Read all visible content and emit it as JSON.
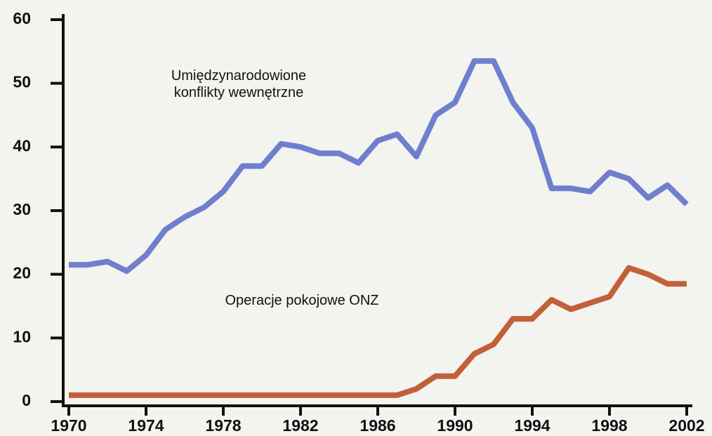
{
  "chart_data": {
    "type": "line",
    "x": [
      1970,
      1971,
      1972,
      1973,
      1974,
      1975,
      1976,
      1977,
      1978,
      1979,
      1980,
      1981,
      1982,
      1983,
      1984,
      1985,
      1986,
      1987,
      1988,
      1989,
      1990,
      1991,
      1992,
      1993,
      1994,
      1995,
      1996,
      1997,
      1998,
      1999,
      2000,
      2001,
      2002
    ],
    "series": [
      {
        "name": "Umiędzynarodowione konflikty wewnętrzne",
        "color": "#6f7fce",
        "values": [
          21.5,
          21.5,
          22,
          20.5,
          23,
          27,
          29,
          30.5,
          33,
          37,
          37,
          40.5,
          40,
          39,
          39,
          37.5,
          41,
          42,
          38.5,
          45,
          47,
          53.5,
          53.5,
          47,
          43,
          33.5,
          33.5,
          33,
          36,
          35,
          32,
          34,
          31
        ]
      },
      {
        "name": "Operacje pokojowe ONZ",
        "color": "#c2603a",
        "values": [
          1,
          1,
          1,
          1,
          1,
          1,
          1,
          1,
          1,
          1,
          1,
          1,
          1,
          1,
          1,
          1,
          1,
          1,
          2,
          4,
          4,
          7.5,
          9,
          13,
          13,
          16,
          14.5,
          15.5,
          16.5,
          21,
          20,
          18.5,
          18.5
        ]
      }
    ],
    "xlim": [
      1970,
      2002
    ],
    "xticks": [
      1970,
      1974,
      1978,
      1982,
      1986,
      1990,
      1994,
      1998,
      2002
    ],
    "ylim": [
      0,
      60
    ],
    "yticks": [
      0,
      10,
      20,
      30,
      40,
      50,
      60
    ]
  }
}
